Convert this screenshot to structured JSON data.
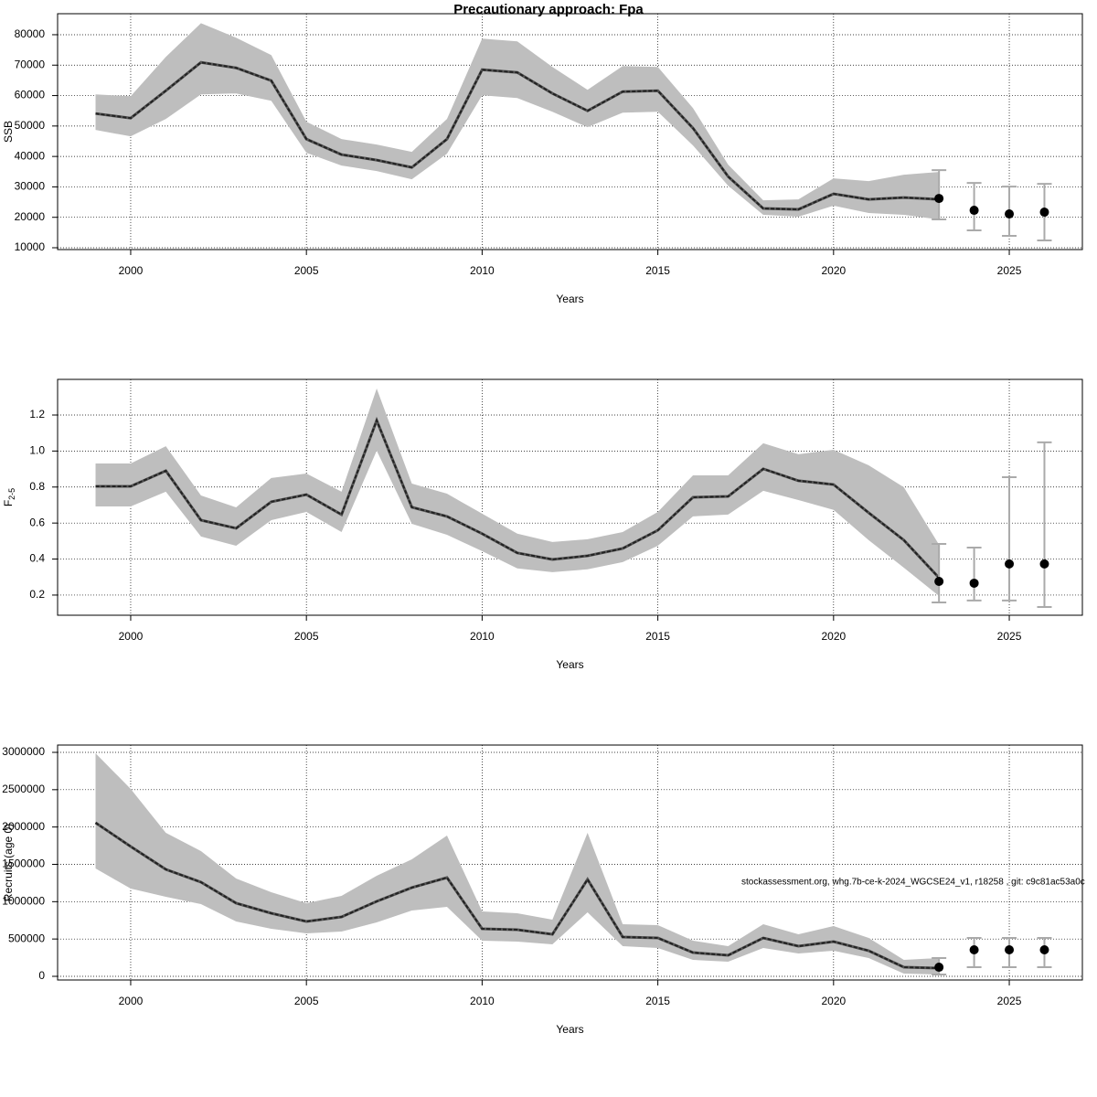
{
  "chart_data": [
    {
      "type": "line",
      "title": "Precautionary approach: Fpa",
      "y_label": "SSB",
      "x_label": "Years",
      "x": [
        1999,
        2000,
        2001,
        2002,
        2003,
        2004,
        2005,
        2006,
        2007,
        2008,
        2009,
        2010,
        2011,
        2012,
        2013,
        2014,
        2015,
        2016,
        2017,
        2018,
        2019,
        2020,
        2021,
        2022,
        2023
      ],
      "values": [
        54100,
        52600,
        61600,
        70900,
        69100,
        64900,
        45700,
        40600,
        38800,
        36400,
        45700,
        68500,
        67600,
        60700,
        55000,
        61300,
        61600,
        49300,
        33400,
        22900,
        22600,
        27700,
        25900,
        26500,
        25900
      ],
      "upper": [
        60400,
        59800,
        72700,
        83800,
        79000,
        73300,
        51400,
        45700,
        43900,
        41500,
        52300,
        78700,
        77800,
        69400,
        61900,
        69700,
        69400,
        55900,
        37300,
        25600,
        25900,
        32800,
        31900,
        34000,
        34900
      ],
      "lower": [
        48700,
        46600,
        52300,
        60400,
        60700,
        58300,
        41200,
        37000,
        35200,
        32500,
        40900,
        60100,
        59200,
        54700,
        49600,
        54400,
        54700,
        43600,
        30400,
        20800,
        20200,
        23800,
        21400,
        20800,
        19300
      ],
      "forecast": {
        "x": [
          2023,
          2024,
          2025,
          2026
        ],
        "values": [
          26200,
          22300,
          21100,
          21700
        ],
        "upper": [
          35500,
          31300,
          30100,
          31000
        ],
        "lower": [
          19300,
          15700,
          13900,
          12400
        ]
      },
      "xlim": [
        1997.92,
        2027.08
      ],
      "xticks": [
        2000,
        2005,
        2010,
        2015,
        2020,
        2025
      ],
      "ylim": [
        9400,
        86900
      ],
      "yticks": [
        10000,
        20000,
        30000,
        40000,
        50000,
        60000,
        70000,
        80000
      ],
      "grid": true,
      "color": "#222222",
      "band_color": "#bebebe",
      "error_color": "#aaaaaa"
    },
    {
      "type": "line",
      "y_label": "F",
      "y_label_sub": "2-5",
      "x_label": "Years",
      "x": [
        1999,
        2000,
        2001,
        2002,
        2003,
        2004,
        2005,
        2006,
        2007,
        2008,
        2009,
        2010,
        2011,
        2012,
        2013,
        2014,
        2015,
        2016,
        2017,
        2018,
        2019,
        2020,
        2021,
        2022,
        2023
      ],
      "values": [
        0.804,
        0.804,
        0.89,
        0.616,
        0.571,
        0.718,
        0.758,
        0.647,
        1.17,
        0.688,
        0.637,
        0.541,
        0.434,
        0.398,
        0.418,
        0.459,
        0.56,
        0.743,
        0.748,
        0.901,
        0.835,
        0.814,
        0.657,
        0.505,
        0.296
      ],
      "upper": [
        0.931,
        0.931,
        1.027,
        0.753,
        0.687,
        0.85,
        0.875,
        0.774,
        1.347,
        0.819,
        0.763,
        0.652,
        0.541,
        0.495,
        0.51,
        0.55,
        0.662,
        0.865,
        0.865,
        1.043,
        0.982,
        1.007,
        0.921,
        0.799,
        0.48
      ],
      "lower": [
        0.692,
        0.692,
        0.774,
        0.525,
        0.474,
        0.616,
        0.662,
        0.55,
        1.002,
        0.596,
        0.535,
        0.444,
        0.348,
        0.327,
        0.343,
        0.383,
        0.474,
        0.637,
        0.647,
        0.779,
        0.728,
        0.673,
        0.505,
        0.352,
        0.195
      ],
      "forecast": {
        "x": [
          2023,
          2024,
          2025,
          2026
        ],
        "values": [
          0.276,
          0.266,
          0.373,
          0.373
        ],
        "upper": [
          0.484,
          0.464,
          0.855,
          1.048
        ],
        "lower": [
          0.159,
          0.17,
          0.17,
          0.134
        ]
      },
      "xlim": [
        1997.92,
        2027.08
      ],
      "xticks": [
        2000,
        2005,
        2010,
        2015,
        2020,
        2025
      ],
      "ylim": [
        0.088,
        1.398
      ],
      "yticks": [
        0.2,
        {
          "value": 0.4,
          "label": "0.4"
        },
        {
          "value": 0.6,
          "label": "0.6"
        },
        {
          "value": 0.8,
          "label": "0.8"
        },
        {
          "value": 1.0,
          "label": "1.0"
        },
        {
          "value": 1.2,
          "label": "1.2"
        }
      ],
      "grid": true,
      "color": "#222222",
      "band_color": "#bebebe",
      "error_color": "#aaaaaa"
    },
    {
      "type": "line",
      "y_label": "Recruits (age 0)",
      "x_label": "Years",
      "annotation": "stockassessment.org, whg.7b-ce-k-2024_WGCSE24_v1, r18258 , git: c9c81ac53a0c",
      "x": [
        1999,
        2000,
        2001,
        2002,
        2003,
        2004,
        2005,
        2006,
        2007,
        2008,
        2009,
        2010,
        2011,
        2012,
        2013,
        2014,
        2015,
        2016,
        2017,
        2018,
        2019,
        2020,
        2021,
        2022,
        2023
      ],
      "values": [
        2057000,
        1739000,
        1433000,
        1261000,
        980000,
        845000,
        735000,
        796000,
        1004000,
        1188000,
        1322000,
        637000,
        624000,
        563000,
        1298000,
        527000,
        514000,
        318000,
        282000,
        514000,
        404000,
        465000,
        343000,
        122000,
        110000
      ],
      "upper": [
        2988000,
        2510000,
        1922000,
        1678000,
        1310000,
        1127000,
        980000,
        1078000,
        1347000,
        1567000,
        1886000,
        869000,
        845000,
        759000,
        1922000,
        698000,
        686000,
        478000,
        404000,
        698000,
        563000,
        673000,
        514000,
        220000,
        245000
      ],
      "lower": [
        1445000,
        1175000,
        1065000,
        967000,
        735000,
        637000,
        576000,
        600000,
        722000,
        882000,
        931000,
        478000,
        465000,
        429000,
        857000,
        404000,
        380000,
        220000,
        196000,
        380000,
        306000,
        343000,
        245000,
        37000,
        24000
      ],
      "forecast": {
        "x": [
          2023,
          2024,
          2025,
          2026
        ],
        "values": [
          122000,
          355000,
          355000,
          355000
        ],
        "upper": [
          245000,
          514000,
          514000,
          514000
        ],
        "lower": [
          24000,
          122000,
          122000,
          122000
        ]
      },
      "xlim": [
        1997.92,
        2027.08
      ],
      "xticks": [
        2000,
        2005,
        2010,
        2015,
        2020,
        2025
      ],
      "ylim": [
        -49000,
        3098000
      ],
      "yticks": [
        0,
        500000,
        1000000,
        1500000,
        2000000,
        2500000,
        3000000
      ],
      "grid": true,
      "color": "#222222",
      "band_color": "#bebebe",
      "error_color": "#aaaaaa"
    }
  ]
}
